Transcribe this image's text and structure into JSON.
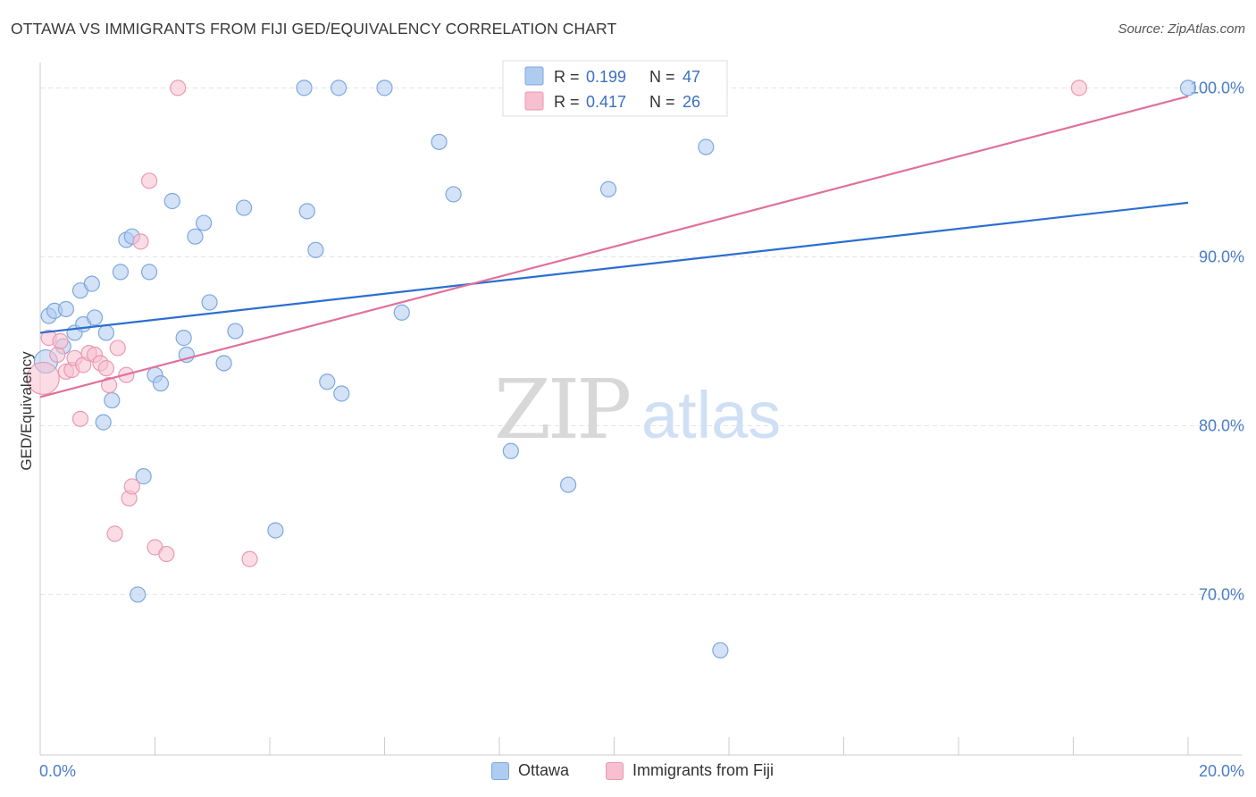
{
  "header": {
    "title": "OTTAWA VS IMMIGRANTS FROM FIJI GED/EQUIVALENCY CORRELATION CHART",
    "source": "Source: ZipAtlas.com"
  },
  "watermark": {
    "zip": "ZIP",
    "atlas": "atlas"
  },
  "colors": {
    "ottawa_fill": "#aecbf0",
    "ottawa_stroke": "#7ea8dd",
    "ottawa_line": "#2b6fd0",
    "fiji_fill": "#f7bfd0",
    "fiji_stroke": "#e99ab2",
    "fiji_line": "#e0709a",
    "tick_label": "#4a7cc7",
    "grid": "#e3e3e3"
  },
  "legend": {
    "rows": [
      {
        "r_label": "R = ",
        "r_value": "0.199",
        "n_label": "N = ",
        "n_value": "47"
      },
      {
        "r_label": "R = ",
        "r_value": "0.417",
        "n_label": "N = ",
        "n_value": "26"
      }
    ]
  },
  "bottom_legend": {
    "series1": "Ottawa",
    "series2": "Immigrants from Fiji"
  },
  "chart_data": {
    "type": "scatter",
    "title": "OTTAWA VS IMMIGRANTS FROM FIJI GED/EQUIVALENCY CORRELATION CHART",
    "xlabel": "",
    "ylabel": "GED/Equivalency",
    "xlim": [
      0,
      20
    ],
    "ylim": [
      60.5,
      101.5
    ],
    "x_tick_labels": [
      "0.0%",
      "20.0%"
    ],
    "y_ticks": [
      70,
      80,
      90,
      100
    ],
    "y_tick_labels": [
      "70.0%",
      "80.0%",
      "90.0%",
      "100.0%"
    ],
    "grid": true,
    "legend_position": "top-center",
    "series": [
      {
        "name": "Ottawa",
        "r": 0.199,
        "n": 47,
        "trend": {
          "x": [
            0.0,
            20.0
          ],
          "y": [
            85.5,
            93.2
          ]
        },
        "points": [
          [
            0.1,
            83.8
          ],
          [
            0.15,
            86.5
          ],
          [
            0.25,
            86.8
          ],
          [
            0.45,
            86.9
          ],
          [
            0.4,
            84.7
          ],
          [
            0.6,
            85.5
          ],
          [
            0.7,
            88.0
          ],
          [
            0.75,
            86.0
          ],
          [
            0.9,
            88.4
          ],
          [
            0.95,
            86.4
          ],
          [
            1.15,
            85.5
          ],
          [
            1.25,
            81.5
          ],
          [
            1.1,
            80.2
          ],
          [
            1.4,
            89.1
          ],
          [
            1.5,
            91.0
          ],
          [
            1.6,
            91.2
          ],
          [
            1.7,
            70.0
          ],
          [
            1.8,
            77.0
          ],
          [
            1.9,
            89.1
          ],
          [
            2.0,
            83.0
          ],
          [
            2.1,
            82.5
          ],
          [
            2.3,
            93.3
          ],
          [
            2.5,
            85.2
          ],
          [
            2.55,
            84.2
          ],
          [
            2.7,
            91.2
          ],
          [
            2.85,
            92.0
          ],
          [
            2.95,
            87.3
          ],
          [
            3.2,
            83.7
          ],
          [
            3.4,
            85.6
          ],
          [
            3.55,
            92.9
          ],
          [
            4.1,
            73.8
          ],
          [
            4.6,
            100.0
          ],
          [
            4.65,
            92.7
          ],
          [
            4.8,
            90.4
          ],
          [
            5.0,
            82.6
          ],
          [
            5.2,
            100.0
          ],
          [
            5.25,
            81.9
          ],
          [
            6.0,
            100.0
          ],
          [
            6.3,
            86.7
          ],
          [
            6.95,
            96.8
          ],
          [
            7.2,
            93.7
          ],
          [
            8.2,
            78.5
          ],
          [
            9.2,
            76.5
          ],
          [
            9.9,
            94.0
          ],
          [
            11.6,
            96.5
          ],
          [
            11.85,
            66.7
          ],
          [
            20.0,
            100.0
          ]
        ]
      },
      {
        "name": "Immigrants from Fiji",
        "r": 0.417,
        "n": 26,
        "trend": {
          "x": [
            0.0,
            20.0
          ],
          "y": [
            81.7,
            99.5
          ]
        },
        "points": [
          [
            0.05,
            82.8
          ],
          [
            0.15,
            85.2
          ],
          [
            0.3,
            84.2
          ],
          [
            0.35,
            85.0
          ],
          [
            0.45,
            83.2
          ],
          [
            0.55,
            83.3
          ],
          [
            0.6,
            84.0
          ],
          [
            0.7,
            80.4
          ],
          [
            0.75,
            83.6
          ],
          [
            0.85,
            84.3
          ],
          [
            0.95,
            84.2
          ],
          [
            1.05,
            83.7
          ],
          [
            1.15,
            83.4
          ],
          [
            1.2,
            82.4
          ],
          [
            1.35,
            84.6
          ],
          [
            1.5,
            83.0
          ],
          [
            1.55,
            75.7
          ],
          [
            1.6,
            76.4
          ],
          [
            1.3,
            73.6
          ],
          [
            1.75,
            90.9
          ],
          [
            1.9,
            94.5
          ],
          [
            2.0,
            72.8
          ],
          [
            2.2,
            72.4
          ],
          [
            2.4,
            100.0
          ],
          [
            3.65,
            72.1
          ],
          [
            18.1,
            100.0
          ]
        ]
      }
    ]
  }
}
